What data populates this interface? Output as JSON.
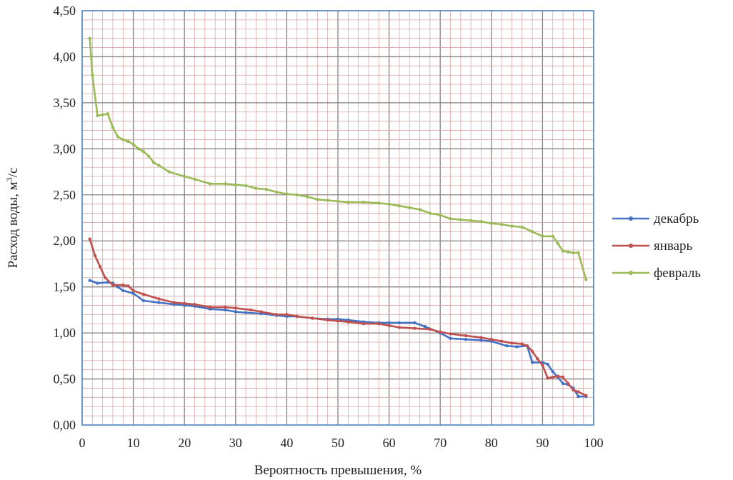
{
  "chart_data": {
    "type": "line",
    "title": "",
    "xlabel": "Вероятность превышения, %",
    "ylabel": "Расход воды, м",
    "ylabel_sup": "3",
    "ylabel_tail": "/с",
    "xlim": [
      0,
      100
    ],
    "ylim": [
      0,
      4.5
    ],
    "x_ticks": [
      "0",
      "10",
      "20",
      "30",
      "40",
      "50",
      "60",
      "70",
      "80",
      "90",
      "100"
    ],
    "y_ticks": [
      "0,00",
      "0,50",
      "1,00",
      "1,50",
      "2,00",
      "2,50",
      "3,00",
      "3,50",
      "4,00",
      "4,50"
    ],
    "grid": true,
    "legend_position": "right",
    "series": [
      {
        "name": "декабрь",
        "color": "#4472c4",
        "x": [
          1.5,
          3,
          5,
          6,
          7,
          8,
          10,
          12,
          15,
          18,
          20,
          22,
          25,
          28,
          30,
          32,
          35,
          38,
          40,
          42,
          45,
          48,
          50,
          52,
          55,
          58,
          60,
          62,
          65,
          67,
          70,
          72,
          75,
          78,
          80,
          83,
          85,
          87,
          88,
          90,
          91,
          92,
          93,
          94,
          95,
          96,
          97,
          98.5
        ],
        "values": [
          1.57,
          1.54,
          1.55,
          1.54,
          1.5,
          1.46,
          1.43,
          1.35,
          1.33,
          1.31,
          1.3,
          1.29,
          1.26,
          1.25,
          1.23,
          1.22,
          1.21,
          1.19,
          1.18,
          1.18,
          1.16,
          1.15,
          1.15,
          1.14,
          1.12,
          1.11,
          1.11,
          1.11,
          1.11,
          1.07,
          1.0,
          0.94,
          0.93,
          0.92,
          0.91,
          0.86,
          0.85,
          0.86,
          0.68,
          0.68,
          0.66,
          0.58,
          0.52,
          0.45,
          0.44,
          0.4,
          0.31,
          0.31
        ]
      },
      {
        "name": "январь",
        "color": "#c0504d",
        "x": [
          1.5,
          2.5,
          3.5,
          4.5,
          6,
          8,
          9,
          10,
          12,
          15,
          18,
          20,
          22,
          25,
          28,
          30,
          33,
          35,
          38,
          40,
          42,
          45,
          48,
          50,
          52,
          55,
          58,
          60,
          62,
          65,
          68,
          70,
          72,
          75,
          78,
          80,
          82,
          84,
          86,
          87,
          88,
          89,
          90,
          91,
          92,
          93,
          94,
          95,
          96,
          97,
          98.5
        ],
        "values": [
          2.02,
          1.84,
          1.72,
          1.6,
          1.52,
          1.52,
          1.51,
          1.46,
          1.42,
          1.37,
          1.33,
          1.32,
          1.31,
          1.28,
          1.28,
          1.27,
          1.25,
          1.23,
          1.2,
          1.2,
          1.18,
          1.16,
          1.14,
          1.13,
          1.12,
          1.1,
          1.1,
          1.08,
          1.06,
          1.05,
          1.04,
          1.01,
          0.99,
          0.97,
          0.95,
          0.93,
          0.91,
          0.89,
          0.88,
          0.86,
          0.8,
          0.72,
          0.65,
          0.51,
          0.52,
          0.53,
          0.52,
          0.45,
          0.38,
          0.36,
          0.32
        ]
      },
      {
        "name": "февраль",
        "color": "#9bbb59",
        "x": [
          1.5,
          2,
          3,
          4,
          5,
          6,
          7,
          8,
          9,
          10,
          11,
          12,
          13,
          14,
          15,
          17,
          20,
          22,
          25,
          28,
          30,
          32,
          34,
          36,
          38,
          40,
          42,
          44,
          46,
          48,
          50,
          52,
          55,
          58,
          60,
          62,
          64,
          66,
          68,
          70,
          72,
          74,
          76,
          78,
          80,
          82,
          84,
          86,
          88,
          90,
          92,
          93,
          94,
          95,
          96,
          97,
          98.5
        ],
        "values": [
          4.2,
          3.8,
          3.36,
          3.37,
          3.38,
          3.23,
          3.13,
          3.1,
          3.08,
          3.05,
          3.0,
          2.97,
          2.92,
          2.85,
          2.82,
          2.75,
          2.7,
          2.67,
          2.62,
          2.62,
          2.61,
          2.6,
          2.57,
          2.56,
          2.53,
          2.51,
          2.5,
          2.48,
          2.45,
          2.44,
          2.43,
          2.42,
          2.42,
          2.41,
          2.4,
          2.38,
          2.36,
          2.34,
          2.3,
          2.28,
          2.24,
          2.23,
          2.22,
          2.21,
          2.19,
          2.18,
          2.16,
          2.15,
          2.1,
          2.05,
          2.05,
          1.97,
          1.89,
          1.88,
          1.87,
          1.87,
          1.58
        ]
      }
    ]
  }
}
